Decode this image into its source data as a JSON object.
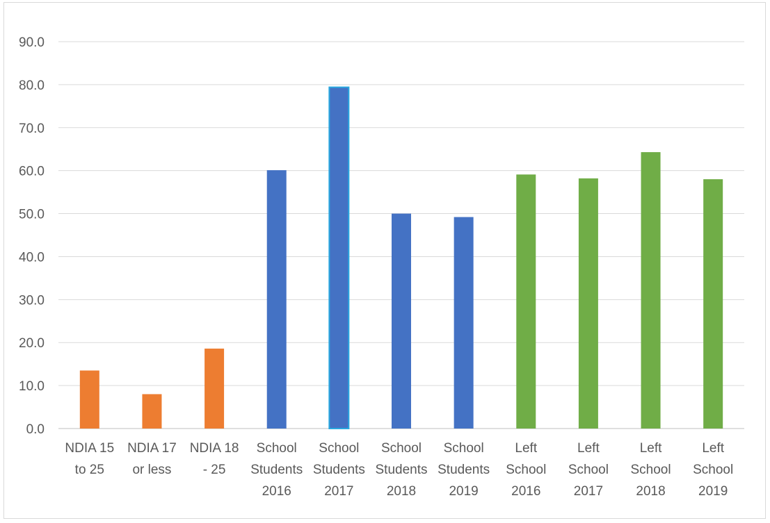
{
  "chart_data": {
    "type": "bar",
    "title": "",
    "xlabel": "",
    "ylabel": "",
    "ylim": [
      0,
      90
    ],
    "yticks": [
      "0.0",
      "10.0",
      "20.0",
      "30.0",
      "40.0",
      "50.0",
      "60.0",
      "70.0",
      "80.0",
      "90.0"
    ],
    "grid": true,
    "legend": "none",
    "categories": [
      [
        "NDIA 15",
        "to 25"
      ],
      [
        "NDIA 17",
        "or less"
      ],
      [
        "NDIA 18",
        "- 25"
      ],
      [
        "School",
        "Students",
        "2016"
      ],
      [
        "School",
        "Students",
        "2017"
      ],
      [
        "School",
        "Students",
        "2018"
      ],
      [
        "School",
        "Students",
        "2019"
      ],
      [
        "Left",
        "School",
        "2016"
      ],
      [
        "Left",
        "School",
        "2017"
      ],
      [
        "Left",
        "School",
        "2018"
      ],
      [
        "Left",
        "School",
        "2019"
      ]
    ],
    "values": [
      13.5,
      8.0,
      18.6,
      60.1,
      79.4,
      50.0,
      49.2,
      59.1,
      58.2,
      64.3,
      58.0
    ],
    "colors": [
      "#ed7d31",
      "#ed7d31",
      "#ed7d31",
      "#4472c4",
      "#4472c4",
      "#4472c4",
      "#4472c4",
      "#70ad47",
      "#70ad47",
      "#70ad47",
      "#70ad47"
    ],
    "highlight_outline": [
      false,
      false,
      false,
      false,
      true,
      false,
      false,
      false,
      false,
      false,
      false
    ],
    "highlight_color": "#29a8e0",
    "gridline_color": "#d9d9d9",
    "axis_color": "#bfbfbf"
  }
}
